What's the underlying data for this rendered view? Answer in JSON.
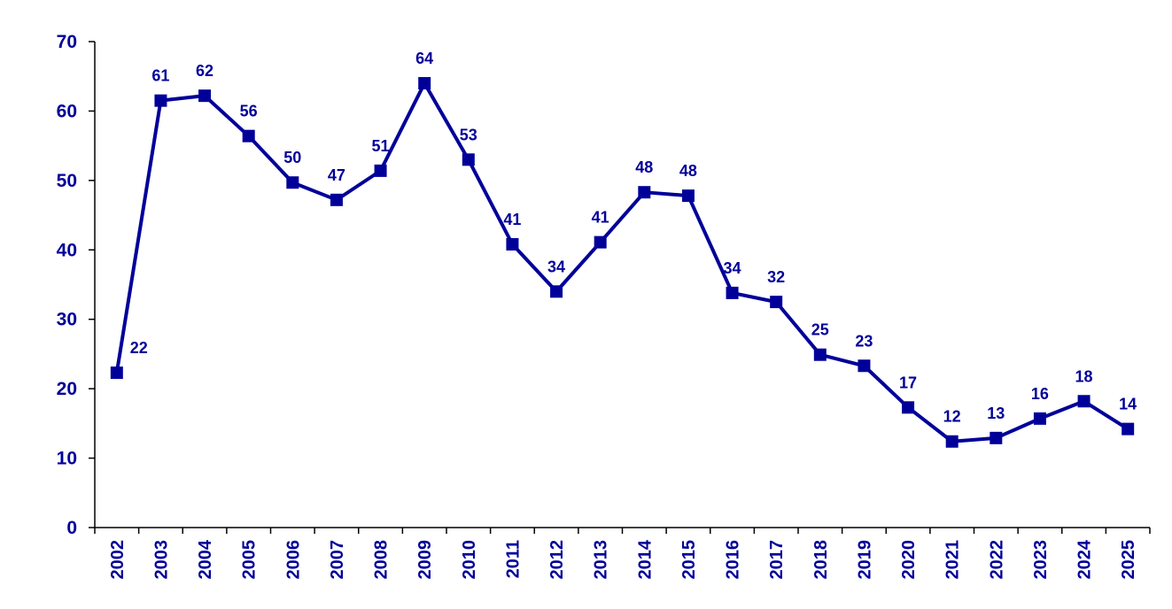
{
  "chart_data": {
    "type": "line",
    "title": "",
    "xlabel": "",
    "ylabel": "",
    "ylim": [
      0,
      70
    ],
    "yticks": [
      "0",
      "10",
      "20",
      "30",
      "40",
      "50",
      "60",
      "70"
    ],
    "grid": false,
    "legend": "none",
    "color": "#000099",
    "marker": "square",
    "categories": [
      "2002",
      "2003",
      "2004",
      "2005",
      "2006",
      "2007",
      "2008",
      "2009",
      "2010",
      "2011",
      "2012",
      "2013",
      "2014",
      "2015",
      "2016",
      "2017",
      "2018",
      "2019",
      "2020",
      "2021",
      "2022",
      "2023",
      "2024",
      "2025"
    ],
    "values": [
      22.3,
      61.5,
      62.2,
      56.4,
      49.7,
      47.2,
      51.4,
      64.0,
      53.0,
      40.8,
      34.0,
      41.1,
      48.3,
      47.8,
      33.8,
      32.5,
      24.9,
      23.3,
      17.3,
      12.4,
      12.9,
      15.7,
      18.2,
      14.2
    ],
    "data_labels": [
      "22",
      "61",
      "62",
      "56",
      "50",
      "47",
      "51",
      "64",
      "53",
      "41",
      "34",
      "41",
      "48",
      "48",
      "34",
      "32",
      "25",
      "23",
      "17",
      "12",
      "13",
      "16",
      "18",
      "14"
    ]
  }
}
